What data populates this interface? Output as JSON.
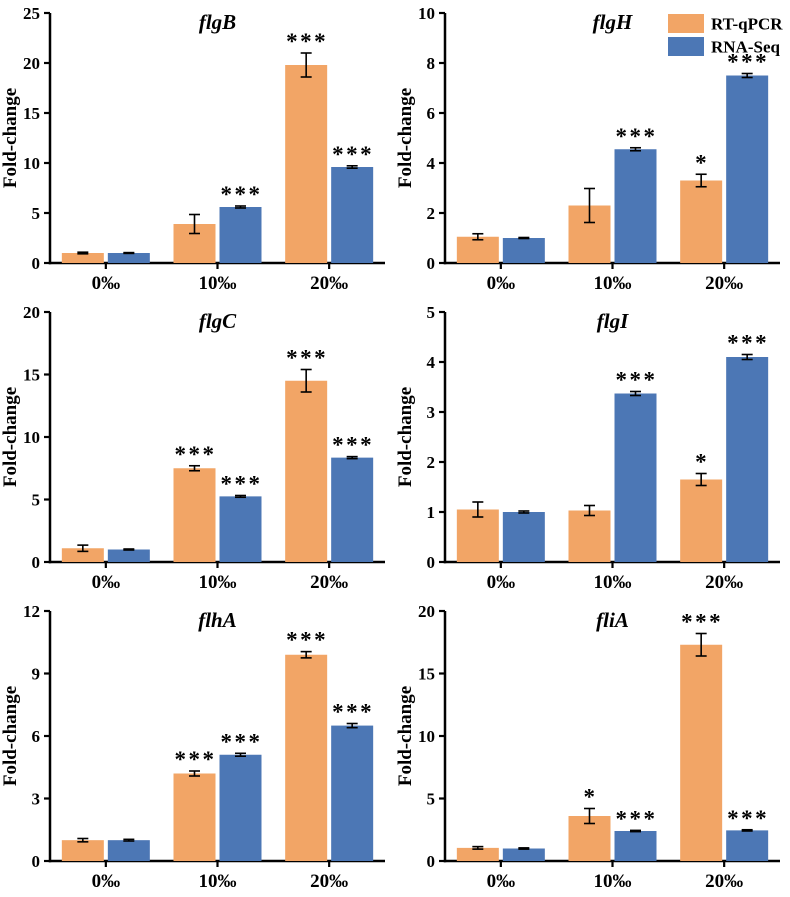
{
  "figure": {
    "ylabel": "Fold-change",
    "colors": {
      "rt_qpcr": "#F2A566",
      "rna_seq": "#4C77B5",
      "axis": "#000000",
      "error_bar": "#000000",
      "background": "#FFFFFF"
    },
    "legend": {
      "items": [
        {
          "label": "RT-qPCR",
          "color": "#F2A566"
        },
        {
          "label": "RNA-Seq",
          "color": "#4C77B5"
        }
      ],
      "position": "top-right of flgH panel"
    }
  },
  "chart_data": [
    {
      "type": "bar",
      "title": "flgB",
      "ylabel": "Fold-change",
      "categories": [
        "0‰",
        "10‰",
        "20‰"
      ],
      "ylim": [
        0,
        25
      ],
      "yticks": [
        0,
        5,
        10,
        15,
        20,
        25
      ],
      "grid": false,
      "legend": false,
      "series": [
        {
          "name": "RT-qPCR",
          "values": [
            1.0,
            3.9,
            19.8
          ],
          "errors": [
            0.08,
            0.95,
            1.2
          ],
          "sig": [
            "",
            "",
            "***"
          ]
        },
        {
          "name": "RNA-Seq",
          "values": [
            1.0,
            5.6,
            9.6
          ],
          "errors": [
            0.04,
            0.1,
            0.12
          ],
          "sig": [
            "",
            "***",
            "***"
          ]
        }
      ]
    },
    {
      "type": "bar",
      "title": "flgH",
      "ylabel": "Fold-change",
      "categories": [
        "0‰",
        "10‰",
        "20‰"
      ],
      "ylim": [
        0,
        10
      ],
      "yticks": [
        0,
        2,
        4,
        6,
        8,
        10
      ],
      "grid": false,
      "legend": true,
      "series": [
        {
          "name": "RT-qPCR",
          "values": [
            1.05,
            2.3,
            3.3
          ],
          "errors": [
            0.12,
            0.68,
            0.25
          ],
          "sig": [
            "",
            "",
            "*"
          ]
        },
        {
          "name": "RNA-Seq",
          "values": [
            1.0,
            4.55,
            7.5
          ],
          "errors": [
            0.02,
            0.06,
            0.08
          ],
          "sig": [
            "",
            "***",
            "***"
          ]
        }
      ]
    },
    {
      "type": "bar",
      "title": "flgC",
      "ylabel": "Fold-change",
      "categories": [
        "0‰",
        "10‰",
        "20‰"
      ],
      "ylim": [
        0,
        20
      ],
      "yticks": [
        0,
        5,
        10,
        15,
        20
      ],
      "grid": false,
      "legend": false,
      "series": [
        {
          "name": "RT-qPCR",
          "values": [
            1.1,
            7.5,
            14.5
          ],
          "errors": [
            0.25,
            0.2,
            0.9
          ],
          "sig": [
            "",
            "***",
            "***"
          ]
        },
        {
          "name": "RNA-Seq",
          "values": [
            1.0,
            5.25,
            8.35
          ],
          "errors": [
            0.04,
            0.07,
            0.08
          ],
          "sig": [
            "",
            "***",
            "***"
          ]
        }
      ]
    },
    {
      "type": "bar",
      "title": "flgI",
      "ylabel": "Fold-change",
      "categories": [
        "0‰",
        "10‰",
        "20‰"
      ],
      "ylim": [
        0,
        5
      ],
      "yticks": [
        0,
        1,
        2,
        3,
        4,
        5
      ],
      "grid": false,
      "legend": false,
      "series": [
        {
          "name": "RT-qPCR",
          "values": [
            1.05,
            1.03,
            1.65
          ],
          "errors": [
            0.15,
            0.1,
            0.12
          ],
          "sig": [
            "",
            "",
            "*"
          ]
        },
        {
          "name": "RNA-Seq",
          "values": [
            1.0,
            3.37,
            4.1
          ],
          "errors": [
            0.02,
            0.04,
            0.05
          ],
          "sig": [
            "",
            "***",
            "***"
          ]
        }
      ]
    },
    {
      "type": "bar",
      "title": "flhA",
      "ylabel": "Fold-change",
      "categories": [
        "0‰",
        "10‰",
        "20‰"
      ],
      "ylim": [
        0,
        12
      ],
      "yticks": [
        0,
        3,
        6,
        9,
        12
      ],
      "grid": false,
      "legend": false,
      "series": [
        {
          "name": "RT-qPCR",
          "values": [
            1.0,
            4.2,
            9.9
          ],
          "errors": [
            0.08,
            0.12,
            0.15
          ],
          "sig": [
            "",
            "***",
            "***"
          ]
        },
        {
          "name": "RNA-Seq",
          "values": [
            1.0,
            5.1,
            6.5
          ],
          "errors": [
            0.04,
            0.07,
            0.1
          ],
          "sig": [
            "",
            "***",
            "***"
          ]
        }
      ]
    },
    {
      "type": "bar",
      "title": "fliA",
      "ylabel": "Fold-change",
      "categories": [
        "0‰",
        "10‰",
        "20‰"
      ],
      "ylim": [
        0,
        20
      ],
      "yticks": [
        0,
        5,
        10,
        15,
        20
      ],
      "grid": false,
      "legend": false,
      "series": [
        {
          "name": "RT-qPCR",
          "values": [
            1.05,
            3.6,
            17.3
          ],
          "errors": [
            0.1,
            0.6,
            0.9
          ],
          "sig": [
            "",
            "*",
            "***"
          ]
        },
        {
          "name": "RNA-Seq",
          "values": [
            1.0,
            2.4,
            2.45
          ],
          "errors": [
            0.05,
            0.05,
            0.05
          ],
          "sig": [
            "",
            "***",
            "***"
          ]
        }
      ]
    }
  ]
}
